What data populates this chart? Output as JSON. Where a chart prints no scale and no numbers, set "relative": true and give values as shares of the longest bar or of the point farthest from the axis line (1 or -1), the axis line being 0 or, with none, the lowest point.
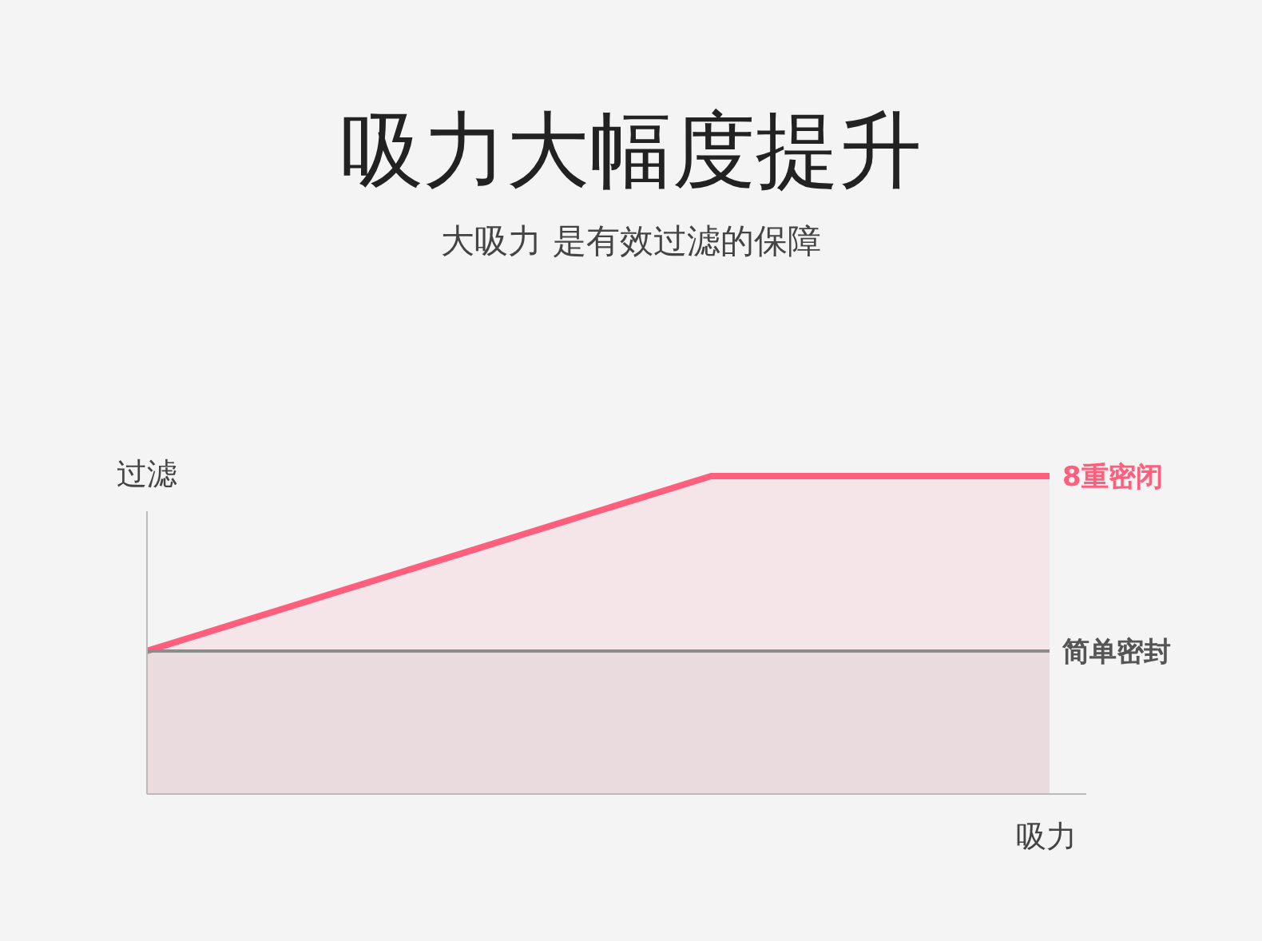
{
  "chart_data": {
    "type": "area",
    "title": "吸力大幅度提升",
    "subtitle": "大吸力 是有效过滤的保障",
    "xlabel": "吸力",
    "ylabel": "过滤",
    "relative": true,
    "categories": [
      null,
      null,
      null,
      null,
      null,
      null,
      null,
      null,
      null
    ],
    "series": [
      {
        "name": "8重密闭",
        "color": "#ff5f7c",
        "values": [
          0.45,
          0.56,
          0.67,
          0.78,
          0.89,
          1,
          1,
          1,
          1
        ]
      },
      {
        "name": "简单密封",
        "color": "#8c8c8c",
        "values": [
          0.45,
          0.45,
          0.45,
          0.45,
          0.45,
          0.45,
          0.45,
          0.45,
          0.45
        ]
      }
    ]
  }
}
